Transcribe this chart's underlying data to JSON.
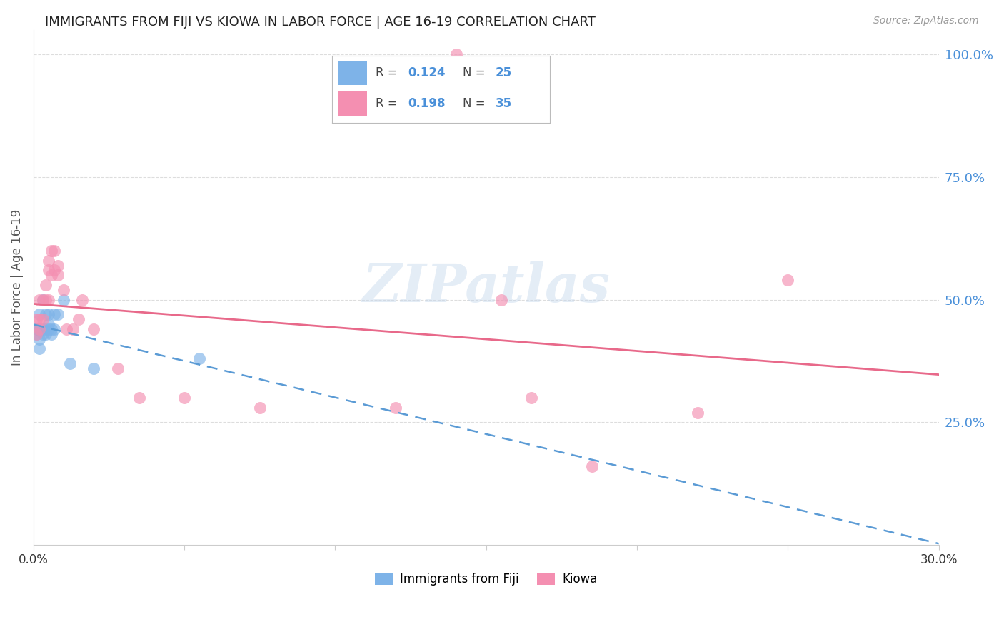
{
  "title": "IMMIGRANTS FROM FIJI VS KIOWA IN LABOR FORCE | AGE 16-19 CORRELATION CHART",
  "source": "Source: ZipAtlas.com",
  "ylabel": "In Labor Force | Age 16-19",
  "xlim": [
    0.0,
    0.3
  ],
  "ylim": [
    0.0,
    1.05
  ],
  "yticks": [
    0.0,
    0.25,
    0.5,
    0.75,
    1.0
  ],
  "ytick_labels": [
    "",
    "25.0%",
    "50.0%",
    "75.0%",
    "100.0%"
  ],
  "xticks": [
    0.0,
    0.05,
    0.1,
    0.15,
    0.2,
    0.25,
    0.3
  ],
  "xtick_labels": [
    "0.0%",
    "",
    "",
    "",
    "",
    "",
    "30.0%"
  ],
  "fiji_color": "#7eb3e8",
  "kiowa_color": "#f48fb1",
  "fiji_line_color": "#5b9bd5",
  "kiowa_line_color": "#e8698a",
  "watermark": "ZIPatlas",
  "fiji_x": [
    0.001,
    0.001,
    0.001,
    0.002,
    0.002,
    0.002,
    0.002,
    0.003,
    0.003,
    0.003,
    0.004,
    0.004,
    0.004,
    0.005,
    0.005,
    0.005,
    0.006,
    0.006,
    0.007,
    0.007,
    0.008,
    0.01,
    0.012,
    0.02,
    0.055
  ],
  "fiji_y": [
    0.43,
    0.44,
    0.44,
    0.4,
    0.42,
    0.44,
    0.47,
    0.43,
    0.44,
    0.5,
    0.43,
    0.44,
    0.47,
    0.44,
    0.45,
    0.47,
    0.43,
    0.44,
    0.44,
    0.47,
    0.47,
    0.5,
    0.37,
    0.36,
    0.38
  ],
  "kiowa_x": [
    0.001,
    0.001,
    0.002,
    0.002,
    0.002,
    0.003,
    0.003,
    0.004,
    0.004,
    0.005,
    0.005,
    0.005,
    0.006,
    0.006,
    0.007,
    0.007,
    0.008,
    0.008,
    0.01,
    0.011,
    0.013,
    0.015,
    0.016,
    0.02,
    0.028,
    0.035,
    0.05,
    0.075,
    0.12,
    0.14,
    0.155,
    0.165,
    0.185,
    0.22,
    0.25
  ],
  "kiowa_y": [
    0.43,
    0.46,
    0.44,
    0.46,
    0.5,
    0.46,
    0.5,
    0.5,
    0.53,
    0.5,
    0.56,
    0.58,
    0.55,
    0.6,
    0.56,
    0.6,
    0.55,
    0.57,
    0.52,
    0.44,
    0.44,
    0.46,
    0.5,
    0.44,
    0.36,
    0.3,
    0.3,
    0.28,
    0.28,
    1.0,
    0.5,
    0.3,
    0.16,
    0.27,
    0.54
  ]
}
